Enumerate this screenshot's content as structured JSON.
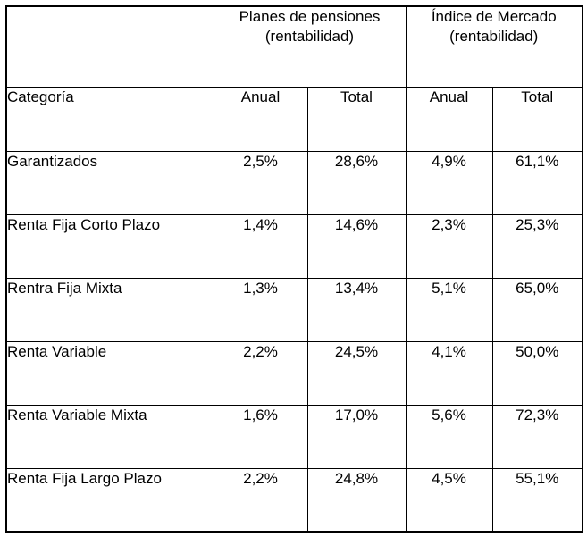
{
  "table": {
    "col_groups": [
      {
        "line1": "Planes de pensiones",
        "line2": "(rentabilidad)"
      },
      {
        "line1": "Índice de Mercado",
        "line2": "(rentabilidad)"
      }
    ],
    "category_header": "Categoría",
    "sub_headers": [
      "Anual",
      "Total",
      "Anual",
      "Total"
    ],
    "rows": [
      {
        "category": "Garantizados",
        "values": [
          "2,5%",
          "28,6%",
          "4,9%",
          "61,1%"
        ],
        "shaded": false
      },
      {
        "category": "Renta Fija Corto Plazo",
        "values": [
          "1,4%",
          "14,6%",
          "2,3%",
          "25,3%"
        ],
        "shaded": true
      },
      {
        "category": "Rentra Fija Mixta",
        "values": [
          "1,3%",
          "13,4%",
          "5,1%",
          "65,0%"
        ],
        "shaded": false
      },
      {
        "category": "Renta Variable",
        "values": [
          "2,2%",
          "24,5%",
          "4,1%",
          "50,0%"
        ],
        "shaded": true
      },
      {
        "category": "Renta Variable Mixta",
        "values": [
          "1,6%",
          "17,0%",
          "5,6%",
          "72,3%"
        ],
        "shaded": false
      },
      {
        "category": "Renta Fija Largo Plazo",
        "values": [
          "2,2%",
          "24,8%",
          "4,5%",
          "55,1%"
        ],
        "shaded": true
      }
    ],
    "colors": {
      "border": "#000000",
      "shaded_bg": "#efefef",
      "text": "#000000",
      "background": "#ffffff"
    }
  }
}
